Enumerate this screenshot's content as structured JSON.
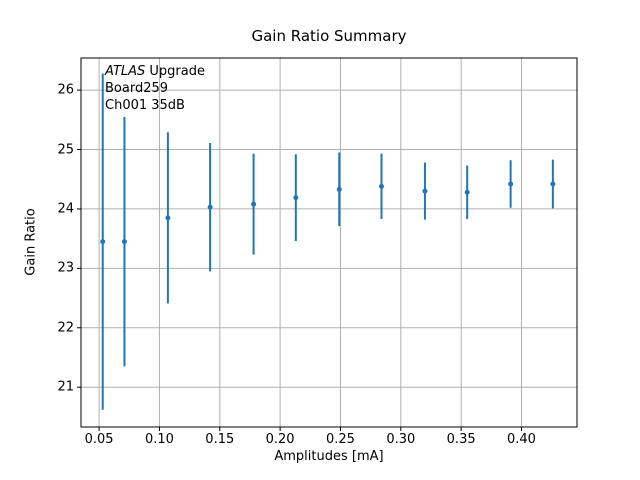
{
  "chart_data": {
    "type": "scatter",
    "title": "Gain Ratio Summary",
    "xlabel": "Amplitudes [mA]",
    "ylabel": "Gain Ratio",
    "x": [
      0.053,
      0.071,
      0.107,
      0.142,
      0.178,
      0.213,
      0.249,
      0.284,
      0.32,
      0.355,
      0.391,
      0.426
    ],
    "y": [
      23.45,
      23.45,
      23.85,
      24.03,
      24.08,
      24.19,
      24.33,
      24.38,
      24.3,
      24.28,
      24.42,
      24.42
    ],
    "yerr": [
      2.83,
      2.1,
      1.44,
      1.08,
      0.85,
      0.73,
      0.62,
      0.55,
      0.48,
      0.45,
      0.4,
      0.41
    ],
    "xlim": [
      0.035,
      0.446
    ],
    "ylim": [
      20.33,
      26.54
    ],
    "xtick_values": [
      0.05,
      0.1,
      0.15,
      0.2,
      0.25,
      0.3,
      0.35,
      0.4
    ],
    "xtick_labels": [
      "0.05",
      "0.10",
      "0.15",
      "0.20",
      "0.25",
      "0.30",
      "0.35",
      "0.40"
    ],
    "ytick_values": [
      21,
      22,
      23,
      24,
      25,
      26
    ],
    "ytick_labels": [
      "21",
      "22",
      "23",
      "24",
      "25",
      "26"
    ],
    "grid": true,
    "legend_position": "none",
    "marker": "circle",
    "series_color": "#1f77b4",
    "grid_color": "#b0b0b0",
    "spine_color": "#000000",
    "annotation": {
      "line1_italic": "ATLAS",
      "line1_rest": " Upgrade",
      "line2": "Board259",
      "line3": "Ch001 35dB"
    }
  }
}
